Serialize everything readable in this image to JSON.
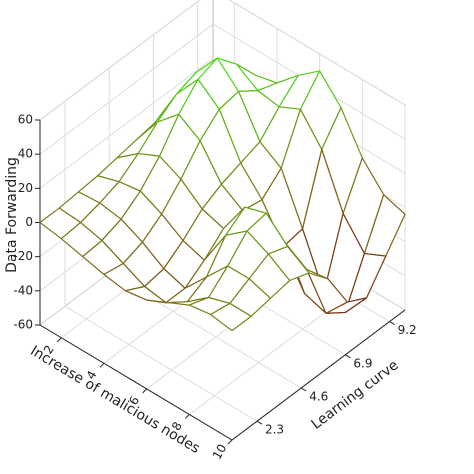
{
  "chart_data": {
    "type": "surface",
    "xlabel": "Increase of malicious nodes",
    "ylabel": "Learning curve",
    "zlabel": "Data Forwarding",
    "x": [
      1,
      2,
      3,
      4,
      5,
      6,
      7,
      8,
      9,
      10
    ],
    "y": [
      1,
      2,
      3,
      4,
      5,
      6,
      7,
      8,
      9,
      10
    ],
    "z": [
      [
        0,
        0,
        1,
        2,
        4,
        6,
        8,
        10,
        10,
        8
      ],
      [
        -2,
        -1,
        2,
        6,
        14,
        24,
        32,
        36,
        30,
        20
      ],
      [
        -5,
        -4,
        0,
        8,
        20,
        36,
        48,
        52,
        40,
        25
      ],
      [
        -8,
        -10,
        -6,
        2,
        14,
        28,
        38,
        40,
        32,
        28
      ],
      [
        -10,
        -16,
        -14,
        -6,
        4,
        10,
        14,
        18,
        30,
        40
      ],
      [
        -8,
        -18,
        -18,
        -10,
        0,
        2,
        0,
        10,
        36,
        50
      ],
      [
        -2,
        -10,
        -4,
        12,
        20,
        6,
        -20,
        -18,
        20,
        36
      ],
      [
        4,
        0,
        10,
        22,
        24,
        -2,
        -40,
        -48,
        -10,
        14
      ],
      [
        6,
        4,
        10,
        16,
        12,
        -10,
        -44,
        -52,
        -26,
        0
      ],
      [
        4,
        4,
        6,
        8,
        4,
        -8,
        -30,
        -36,
        -20,
        -4
      ]
    ],
    "xlim": [
      1,
      10
    ],
    "ylim": [
      1,
      10
    ],
    "zlim": [
      -60,
      60
    ],
    "xticks": [
      2,
      4,
      6,
      8,
      10
    ],
    "yticks": [
      2.3,
      4.6,
      6.9,
      9.2
    ],
    "zticks": [
      -60,
      -40,
      -20,
      0,
      20,
      40,
      60
    ],
    "colormap": [
      "#7a0a0a",
      "#7d7a1c",
      "#3cff1a"
    ],
    "grid": true
  }
}
